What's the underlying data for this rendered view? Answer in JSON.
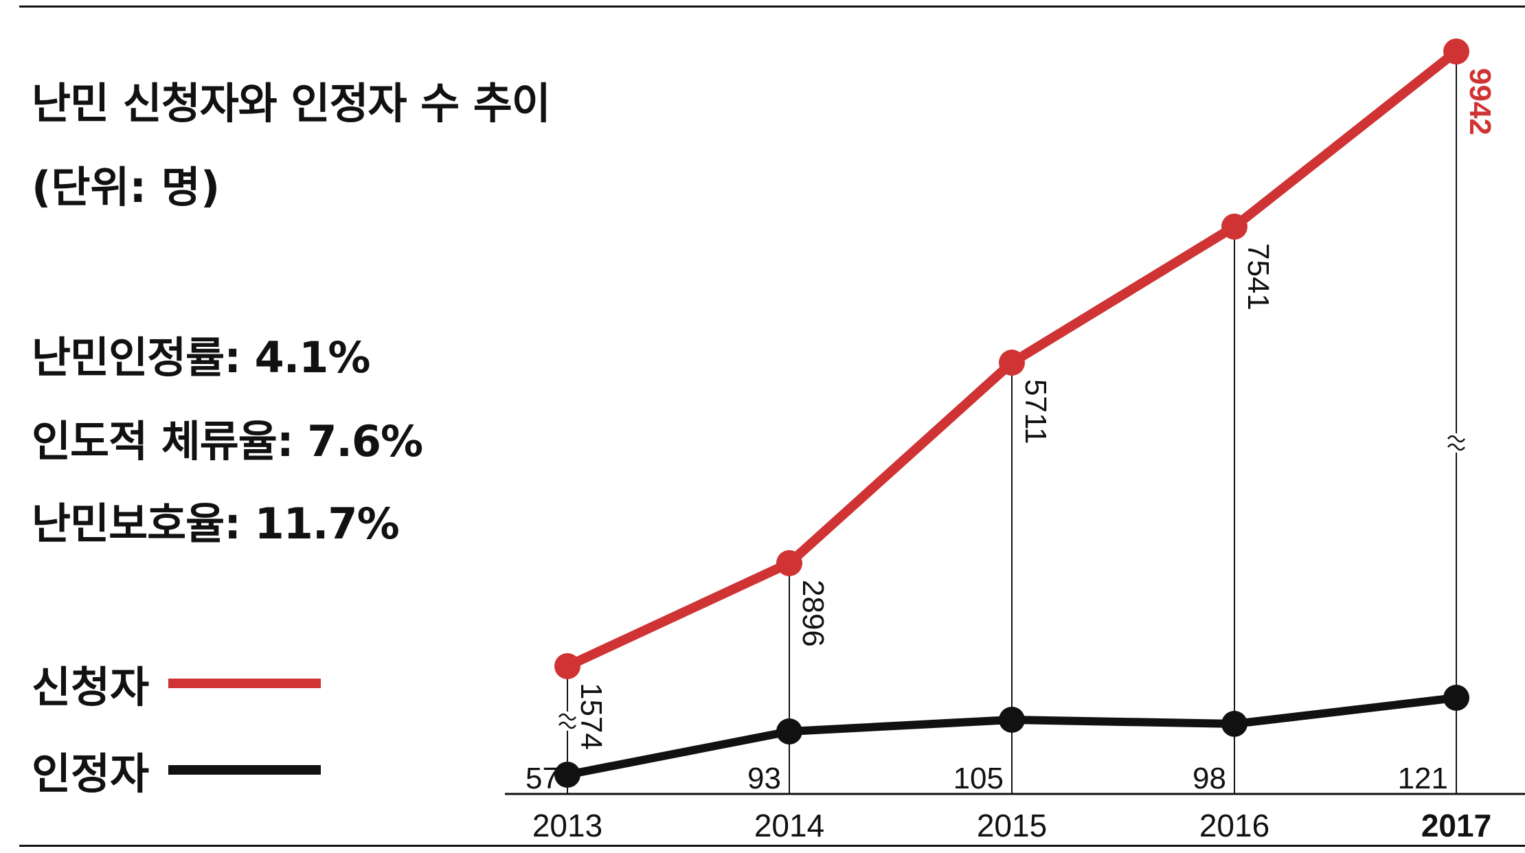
{
  "header": {
    "title": "난민 신청자와 인정자 수 추이",
    "unit": "(단위: 명)"
  },
  "stats": [
    {
      "label": "난민인정률",
      "value": "4.1%"
    },
    {
      "label": "인도적 체류율",
      "value": "7.6%"
    },
    {
      "label": "난민보호율",
      "value": "11.7%"
    }
  ],
  "legend": [
    {
      "label": "신청자",
      "color": "#cf3333"
    },
    {
      "label": "인정자",
      "color": "#111111"
    }
  ],
  "chart_data": {
    "type": "line",
    "title": "난민 신청자와 인정자 수 추이",
    "xlabel": "",
    "ylabel": "",
    "x": [
      "2013",
      "2014",
      "2015",
      "2016",
      "2017"
    ],
    "x_bold": [
      "2017"
    ],
    "series": [
      {
        "name": "신청자",
        "color": "#cf3333",
        "values": [
          1574,
          2896,
          5711,
          7541,
          9942
        ],
        "labels": [
          "1574",
          "2896",
          "5711",
          "7541",
          "9942"
        ]
      },
      {
        "name": "인정자",
        "color": "#111111",
        "values": [
          57,
          93,
          105,
          98,
          121
        ],
        "labels": [
          "57",
          "93",
          "105",
          "98",
          "121"
        ]
      }
    ],
    "axis_breaks": [
      "2013",
      "2017"
    ],
    "grid": false,
    "legend_position": "left"
  }
}
